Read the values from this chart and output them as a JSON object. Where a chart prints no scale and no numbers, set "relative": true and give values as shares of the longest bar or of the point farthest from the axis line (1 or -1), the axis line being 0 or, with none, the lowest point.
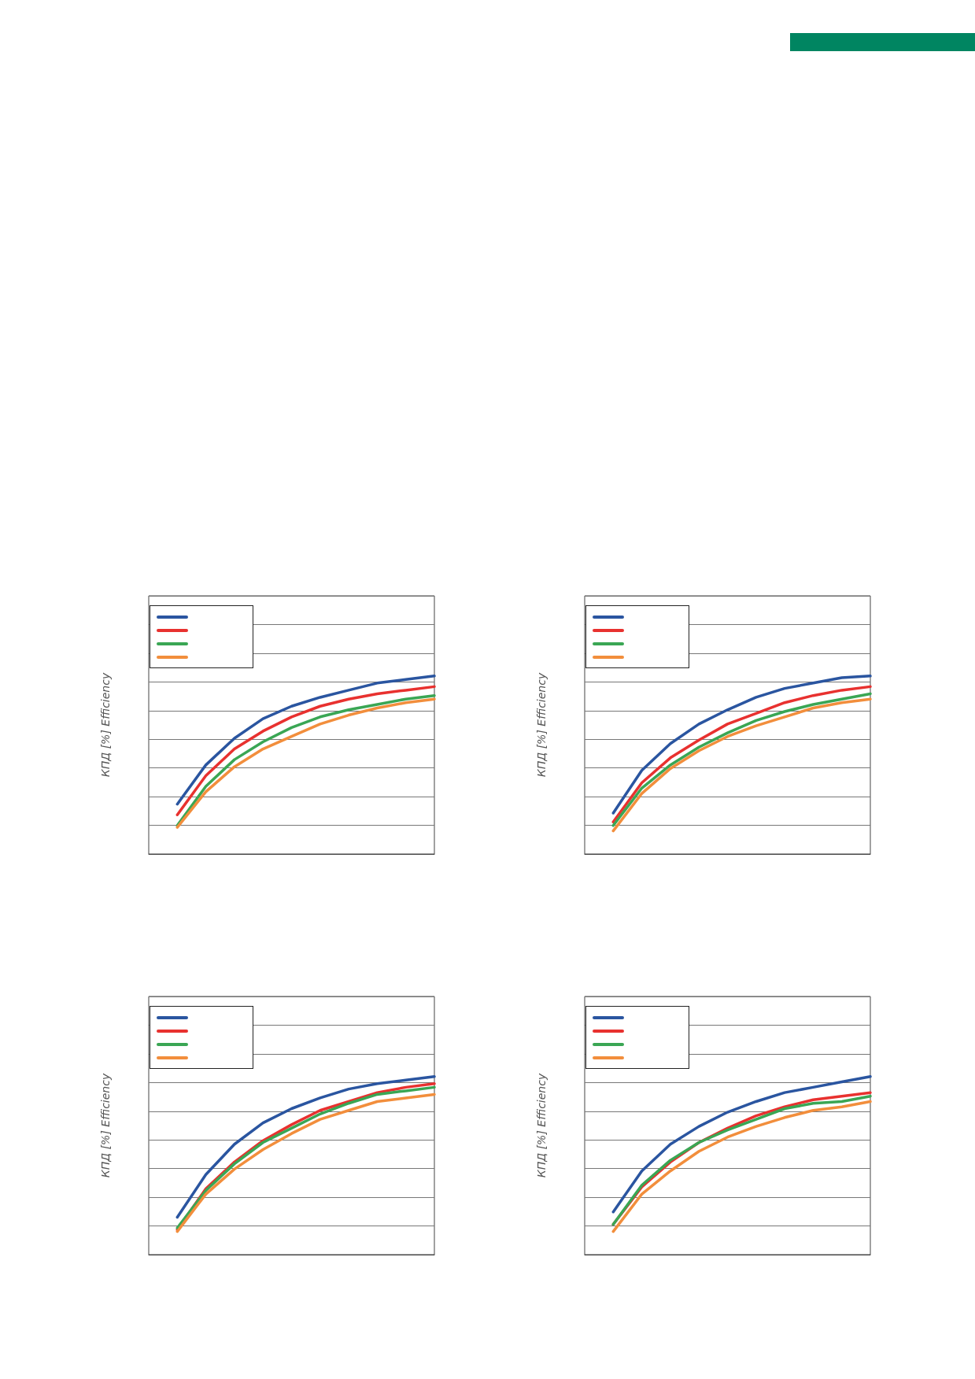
{
  "chart_data": [
    {
      "type": "line",
      "ylabel": "КПД [%] Efficiency",
      "relative": true,
      "grid": "y",
      "marker": "none",
      "line_style": "solid",
      "categories": [
        null,
        null,
        null,
        null,
        null,
        null,
        null,
        null,
        null,
        null,
        null
      ],
      "series": [
        {
          "color": "#2a55a0",
          "values": [
            null,
            0.28,
            0.5,
            0.65,
            0.76,
            0.83,
            0.88,
            0.92,
            0.96,
            0.98,
            1
          ]
        },
        {
          "color": "#e8312f",
          "values": [
            null,
            0.22,
            0.44,
            0.59,
            0.69,
            0.77,
            0.83,
            0.87,
            0.9,
            0.92,
            0.94
          ]
        },
        {
          "color": "#3aa654",
          "values": [
            null,
            0.16,
            0.38,
            0.53,
            0.63,
            0.71,
            0.77,
            0.81,
            0.84,
            0.87,
            0.89
          ]
        },
        {
          "color": "#f28e3c",
          "values": [
            null,
            0.15,
            0.35,
            0.49,
            0.59,
            0.66,
            0.73,
            0.78,
            0.82,
            0.85,
            0.87
          ]
        }
      ]
    },
    {
      "type": "line",
      "ylabel": "КПД [%] Efficiency",
      "relative": true,
      "grid": "y",
      "marker": "none",
      "line_style": "solid",
      "categories": [
        null,
        null,
        null,
        null,
        null,
        null,
        null,
        null,
        null,
        null,
        null
      ],
      "series": [
        {
          "color": "#2a55a0",
          "values": [
            null,
            0.23,
            0.47,
            0.62,
            0.73,
            0.81,
            0.88,
            0.93,
            0.96,
            0.99,
            1
          ]
        },
        {
          "color": "#e8312f",
          "values": [
            null,
            0.18,
            0.4,
            0.54,
            0.64,
            0.73,
            0.79,
            0.85,
            0.89,
            0.92,
            0.94
          ]
        },
        {
          "color": "#3aa654",
          "values": [
            null,
            0.16,
            0.37,
            0.5,
            0.6,
            0.68,
            0.75,
            0.8,
            0.84,
            0.87,
            0.9
          ]
        },
        {
          "color": "#f28e3c",
          "values": [
            null,
            0.13,
            0.34,
            0.48,
            0.58,
            0.66,
            0.72,
            0.77,
            0.82,
            0.85,
            0.87
          ]
        }
      ]
    },
    {
      "type": "line",
      "ylabel": "КПД [%] Efficiency",
      "relative": true,
      "grid": "y",
      "marker": "none",
      "line_style": "solid",
      "categories": [
        null,
        null,
        null,
        null,
        null,
        null,
        null,
        null,
        null,
        null,
        null
      ],
      "series": [
        {
          "color": "#2a55a0",
          "values": [
            null,
            0.21,
            0.45,
            0.62,
            0.74,
            0.82,
            0.88,
            0.93,
            0.96,
            0.98,
            1
          ]
        },
        {
          "color": "#e8312f",
          "values": [
            null,
            0.14,
            0.37,
            0.52,
            0.64,
            0.73,
            0.81,
            0.86,
            0.91,
            0.94,
            0.96
          ]
        },
        {
          "color": "#3aa654",
          "values": [
            null,
            0.15,
            0.36,
            0.51,
            0.63,
            0.71,
            0.79,
            0.85,
            0.9,
            0.92,
            0.94
          ]
        },
        {
          "color": "#f28e3c",
          "values": [
            null,
            0.13,
            0.34,
            0.48,
            0.59,
            0.68,
            0.76,
            0.81,
            0.86,
            0.88,
            0.9
          ]
        }
      ]
    },
    {
      "type": "line",
      "ylabel": "КПД [%] Efficiency",
      "relative": true,
      "grid": "y",
      "marker": "none",
      "line_style": "solid",
      "categories": [
        null,
        null,
        null,
        null,
        null,
        null,
        null,
        null,
        null,
        null,
        null
      ],
      "series": [
        {
          "color": "#2a55a0",
          "values": [
            null,
            0.24,
            0.47,
            0.62,
            0.72,
            0.8,
            0.86,
            0.91,
            0.94,
            0.97,
            1
          ]
        },
        {
          "color": "#e8312f",
          "values": [
            null,
            0.17,
            0.38,
            0.52,
            0.63,
            0.71,
            0.78,
            0.83,
            0.87,
            0.89,
            0.91
          ]
        },
        {
          "color": "#3aa654",
          "values": [
            null,
            0.17,
            0.39,
            0.53,
            0.63,
            0.7,
            0.76,
            0.82,
            0.85,
            0.86,
            0.89
          ]
        },
        {
          "color": "#f28e3c",
          "values": [
            null,
            0.13,
            0.34,
            0.47,
            0.58,
            0.66,
            0.72,
            0.77,
            0.81,
            0.83,
            0.86
          ]
        }
      ]
    }
  ]
}
